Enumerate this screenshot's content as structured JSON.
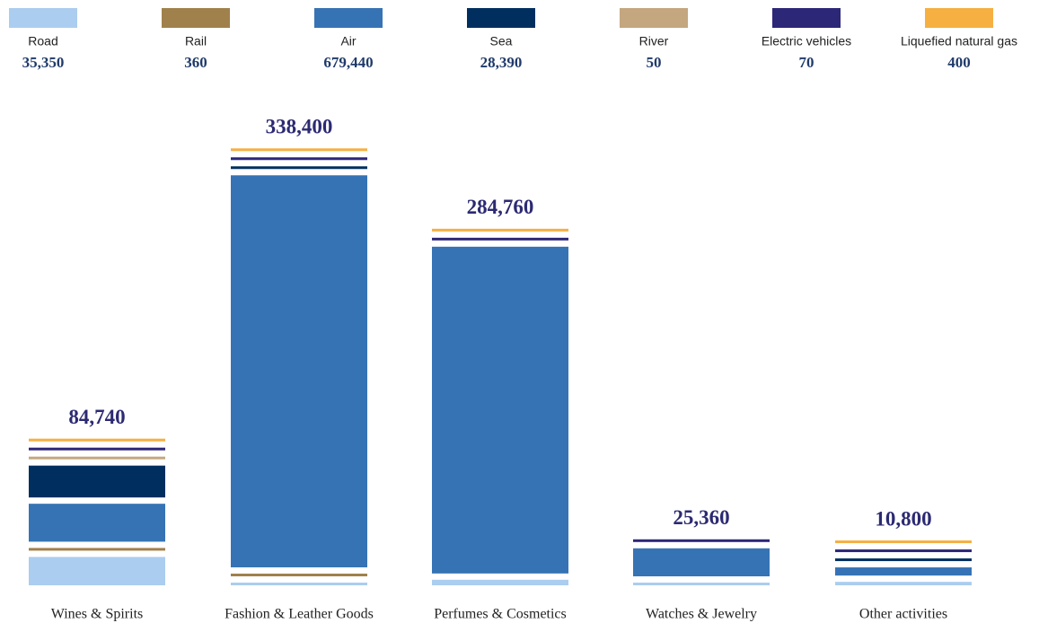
{
  "chart_data": {
    "type": "stacked-bar",
    "categories": [
      "Wines & Spirits",
      "Fashion & Leather Goods",
      "Perfumes & Cosmetics",
      "Watches & Jewelry",
      "Other activities"
    ],
    "stack_totals": [
      84740,
      338400,
      284760,
      25360,
      10800
    ],
    "stack_total_labels": [
      "84,740",
      "338,400",
      "284,760",
      "25,360",
      "10,800"
    ],
    "series": [
      {
        "name": "Road",
        "color": "#abcdef",
        "values": [
          24300,
          2000,
          4740,
          1350,
          2960
        ],
        "total": 35350,
        "total_label": "35,350"
      },
      {
        "name": "Rail",
        "color": "#a0814c",
        "values": [
          210,
          150,
          0,
          0,
          0
        ],
        "total": 360,
        "total_label": "360"
      },
      {
        "name": "Air",
        "color": "#3673b5",
        "values": [
          32500,
          335940,
          280000,
          24000,
          7000
        ],
        "total": 679440,
        "total_label": "679,440"
      },
      {
        "name": "Sea",
        "color": "#002f5f",
        "values": [
          27300,
          270,
          0,
          0,
          820
        ],
        "total": 28390,
        "total_label": "28,390"
      },
      {
        "name": "River",
        "color": "#c4a67f",
        "values": [
          50,
          0,
          0,
          0,
          0
        ],
        "total": 50,
        "total_label": "50"
      },
      {
        "name": "Electric vehicles",
        "color": "#2c2777",
        "values": [
          20,
          20,
          10,
          10,
          10
        ],
        "total": 70,
        "total_label": "70"
      },
      {
        "name": "Liquefied natural gas",
        "color": "#f5b041",
        "values": [
          360,
          20,
          10,
          0,
          10
        ],
        "total": 400,
        "total_label": "400"
      }
    ]
  }
}
